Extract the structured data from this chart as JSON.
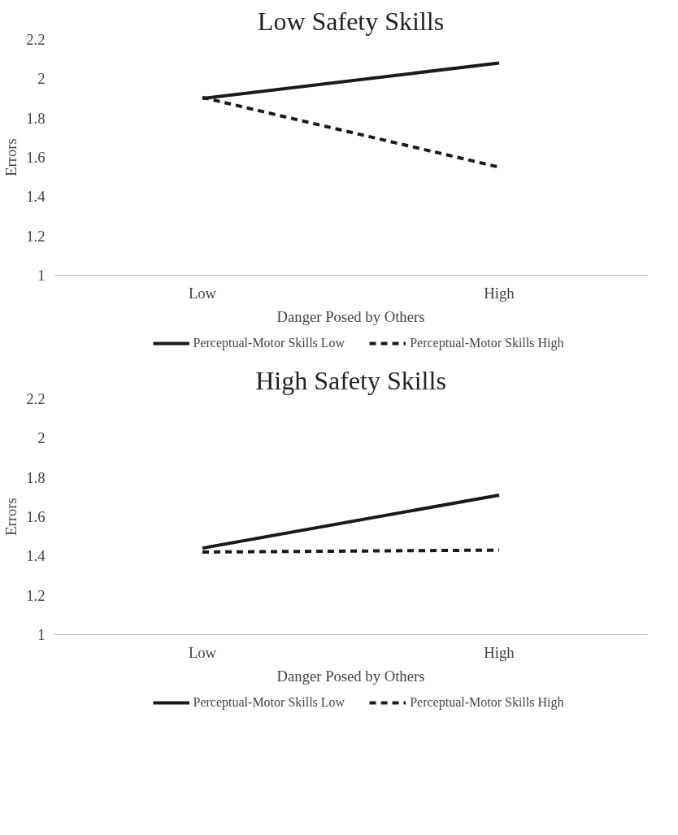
{
  "chart_data": [
    {
      "type": "line",
      "title": "Low Safety Skills",
      "xlabel": "Danger Posed by Others",
      "ylabel": "Errors",
      "categories": [
        "Low",
        "High"
      ],
      "ylim": [
        1,
        2.2
      ],
      "yticks": [
        1,
        1.2,
        1.4,
        1.6,
        1.8,
        2,
        2.2
      ],
      "grid": false,
      "legend": "bottom",
      "marker": "none",
      "series": [
        {
          "name": "Perceptual-Motor Skills Low",
          "color": "#1a1a1a",
          "line_style": "solid",
          "values": [
            1.9,
            2.08
          ]
        },
        {
          "name": "Perceptual-Motor Skills High",
          "color": "#1a1a1a",
          "line_style": "dashed",
          "values": [
            1.905,
            1.55
          ]
        }
      ]
    },
    {
      "type": "line",
      "title": "High Safety Skills",
      "xlabel": "Danger Posed by Others",
      "ylabel": "Errors",
      "categories": [
        "Low",
        "High"
      ],
      "ylim": [
        1,
        2.2
      ],
      "yticks": [
        1,
        1.2,
        1.4,
        1.6,
        1.8,
        2,
        2.2
      ],
      "grid": false,
      "legend": "bottom",
      "marker": "none",
      "series": [
        {
          "name": "Perceptual-Motor Skills Low",
          "color": "#1a1a1a",
          "line_style": "solid",
          "values": [
            1.44,
            1.71
          ]
        },
        {
          "name": "Perceptual-Motor Skills High",
          "color": "#1a1a1a",
          "line_style": "dashed",
          "values": [
            1.42,
            1.43
          ]
        }
      ]
    }
  ]
}
